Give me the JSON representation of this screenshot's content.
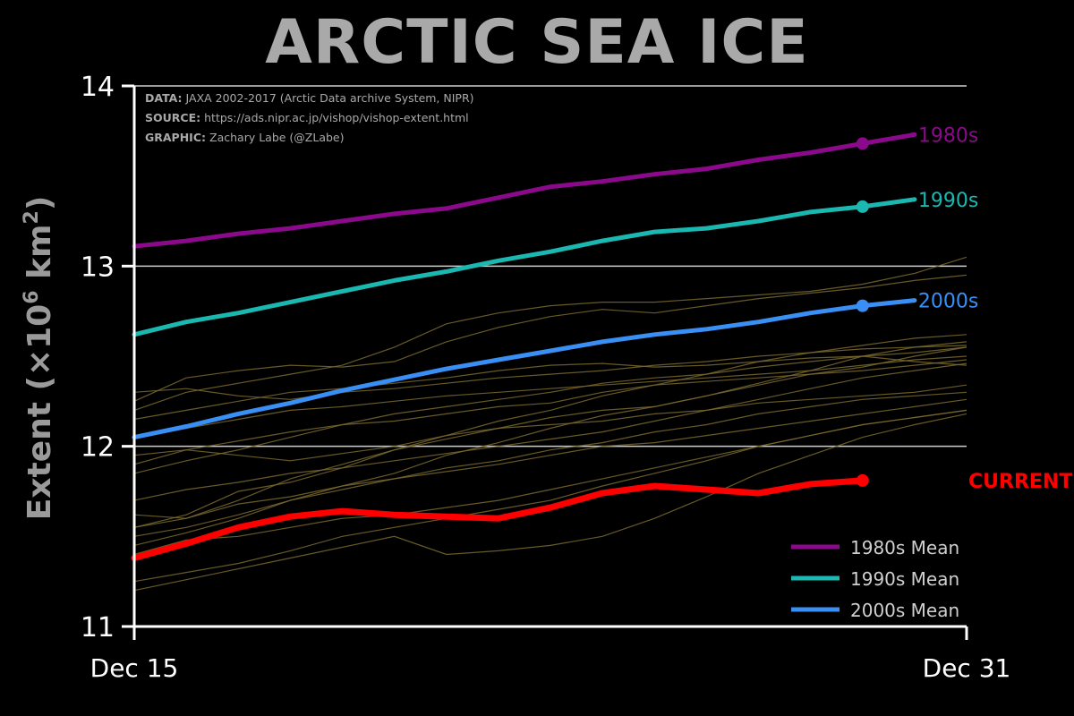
{
  "chart_data": {
    "type": "line",
    "title": "ARCTIC SEA ICE",
    "ylabel_main": "Extent (×10",
    "ylabel_exp": "6",
    "ylabel_unit": " km",
    "ylabel_unit_exp": "2",
    "ylabel_close": ")",
    "ylim": [
      11,
      14
    ],
    "yticks": [
      11,
      12,
      13,
      14
    ],
    "ytick_labels": [
      "11",
      "12",
      "13",
      "14"
    ],
    "x_ticks": [
      {
        "index": 0,
        "label": "Dec 15"
      },
      {
        "index": 16,
        "label": "Dec 31"
      }
    ],
    "x_count": 17,
    "grid": "horizontal",
    "credits": [
      {
        "key": "DATA:",
        "value": "JAXA 2002-2017 (Arctic Data archive System, NIPR)"
      },
      {
        "key": "SOURCE:",
        "value": "https://ads.nipr.ac.jp/vishop/vishop-extent.html"
      },
      {
        "key": "GRAPHIC:",
        "value": "Zachary Labe (@ZLabe)"
      }
    ],
    "legend_placement": "bottom-right",
    "series": [
      {
        "name": "1980s Mean",
        "end_label": "1980s",
        "color": "#8b0a8b",
        "width": 5,
        "values": [
          13.11,
          13.14,
          13.18,
          13.21,
          13.25,
          13.29,
          13.32,
          13.38,
          13.44,
          13.47,
          13.51,
          13.54,
          13.59,
          13.63,
          13.68,
          13.73
        ]
      },
      {
        "name": "1990s Mean",
        "end_label": "1990s",
        "color": "#1ab8b0",
        "width": 5,
        "values": [
          12.62,
          12.69,
          12.74,
          12.8,
          12.86,
          12.92,
          12.97,
          13.03,
          13.08,
          13.14,
          13.19,
          13.21,
          13.25,
          13.3,
          13.33,
          13.37
        ]
      },
      {
        "name": "2000s Mean",
        "end_label": "2000s",
        "color": "#3a8ff5",
        "width": 5,
        "values": [
          12.05,
          12.11,
          12.18,
          12.24,
          12.31,
          12.37,
          12.43,
          12.48,
          12.53,
          12.58,
          12.62,
          12.65,
          12.69,
          12.74,
          12.78,
          12.81
        ]
      },
      {
        "name": "CURRENT",
        "end_label": "CURRENT",
        "color": "#ff0000",
        "width": 7,
        "values": [
          11.38,
          11.46,
          11.55,
          11.61,
          11.64,
          11.62,
          11.61,
          11.6,
          11.66,
          11.74,
          11.78,
          11.76,
          11.74,
          11.79,
          11.81
        ]
      }
    ],
    "background_years": {
      "color": "#7a6a2e",
      "series": [
        [
          11.45,
          11.52,
          11.6,
          11.7,
          11.78,
          11.85,
          11.95,
          12.02,
          12.1,
          12.17,
          12.22,
          12.28,
          12.35,
          12.42,
          12.5,
          12.55,
          12.58
        ],
        [
          11.62,
          11.6,
          11.7,
          11.82,
          11.9,
          11.98,
          12.06,
          12.14,
          12.2,
          12.28,
          12.34,
          12.4,
          12.47,
          12.52,
          12.56,
          12.6,
          12.62
        ],
        [
          11.85,
          11.92,
          11.98,
          12.05,
          12.12,
          12.18,
          12.22,
          12.26,
          12.3,
          12.35,
          12.38,
          12.4,
          12.44,
          12.47,
          12.5,
          12.52,
          12.55
        ],
        [
          12.15,
          12.2,
          12.25,
          12.3,
          12.32,
          12.35,
          12.38,
          12.42,
          12.45,
          12.46,
          12.44,
          12.45,
          12.47,
          12.49,
          12.5,
          12.47,
          12.45
        ],
        [
          12.2,
          12.3,
          12.35,
          12.4,
          12.45,
          12.55,
          12.68,
          12.74,
          12.78,
          12.8,
          12.8,
          12.82,
          12.84,
          12.86,
          12.9,
          12.96,
          13.05
        ],
        [
          12.25,
          12.38,
          12.42,
          12.45,
          12.44,
          12.47,
          12.58,
          12.66,
          12.72,
          12.76,
          12.74,
          12.78,
          12.82,
          12.85,
          12.88,
          12.92,
          12.95
        ],
        [
          11.95,
          11.98,
          12.03,
          12.08,
          12.12,
          12.14,
          12.18,
          12.22,
          12.24,
          12.3,
          12.34,
          12.36,
          12.38,
          12.4,
          12.42,
          12.45,
          12.48
        ],
        [
          11.55,
          11.62,
          11.75,
          11.8,
          11.88,
          11.98,
          12.04,
          12.1,
          12.16,
          12.2,
          12.22,
          12.28,
          12.34,
          12.4,
          12.44,
          12.5,
          12.55
        ],
        [
          11.7,
          11.76,
          11.8,
          11.85,
          11.88,
          11.92,
          11.96,
          12.0,
          12.04,
          12.08,
          12.14,
          12.2,
          12.26,
          12.32,
          12.38,
          12.42,
          12.46
        ],
        [
          11.9,
          11.98,
          11.95,
          11.92,
          11.96,
          12.0,
          12.06,
          12.1,
          12.12,
          12.14,
          12.18,
          12.2,
          12.24,
          12.26,
          12.28,
          12.3,
          12.34
        ],
        [
          11.5,
          11.55,
          11.62,
          11.7,
          11.76,
          11.82,
          11.88,
          11.92,
          11.98,
          12.02,
          12.08,
          12.12,
          12.18,
          12.22,
          12.26,
          12.28,
          12.3
        ],
        [
          11.25,
          11.3,
          11.35,
          11.42,
          11.5,
          11.55,
          11.6,
          11.65,
          11.7,
          11.78,
          11.85,
          11.92,
          12.0,
          12.06,
          12.12,
          12.16,
          12.2
        ],
        [
          11.2,
          11.26,
          11.32,
          11.38,
          11.44,
          11.5,
          11.4,
          11.42,
          11.45,
          11.5,
          11.6,
          11.72,
          11.85,
          11.95,
          12.05,
          12.12,
          12.18
        ],
        [
          11.4,
          11.48,
          11.5,
          11.55,
          11.6,
          11.62,
          11.66,
          11.7,
          11.76,
          11.82,
          11.88,
          11.94,
          12.0,
          12.06,
          12.12,
          12.16,
          12.2
        ],
        [
          11.55,
          11.6,
          11.68,
          11.72,
          11.78,
          11.82,
          11.86,
          11.9,
          11.95,
          12.0,
          12.02,
          12.06,
          12.1,
          12.14,
          12.18,
          12.22,
          12.26
        ],
        [
          12.05,
          12.1,
          12.15,
          12.2,
          12.22,
          12.25,
          12.28,
          12.3,
          12.32,
          12.34,
          12.36,
          12.38,
          12.4,
          12.42,
          12.45,
          12.48,
          12.5
        ],
        [
          12.3,
          12.32,
          12.28,
          12.26,
          12.3,
          12.32,
          12.35,
          12.38,
          12.4,
          12.42,
          12.45,
          12.47,
          12.5,
          12.52,
          12.54,
          12.55,
          12.56
        ]
      ]
    }
  }
}
